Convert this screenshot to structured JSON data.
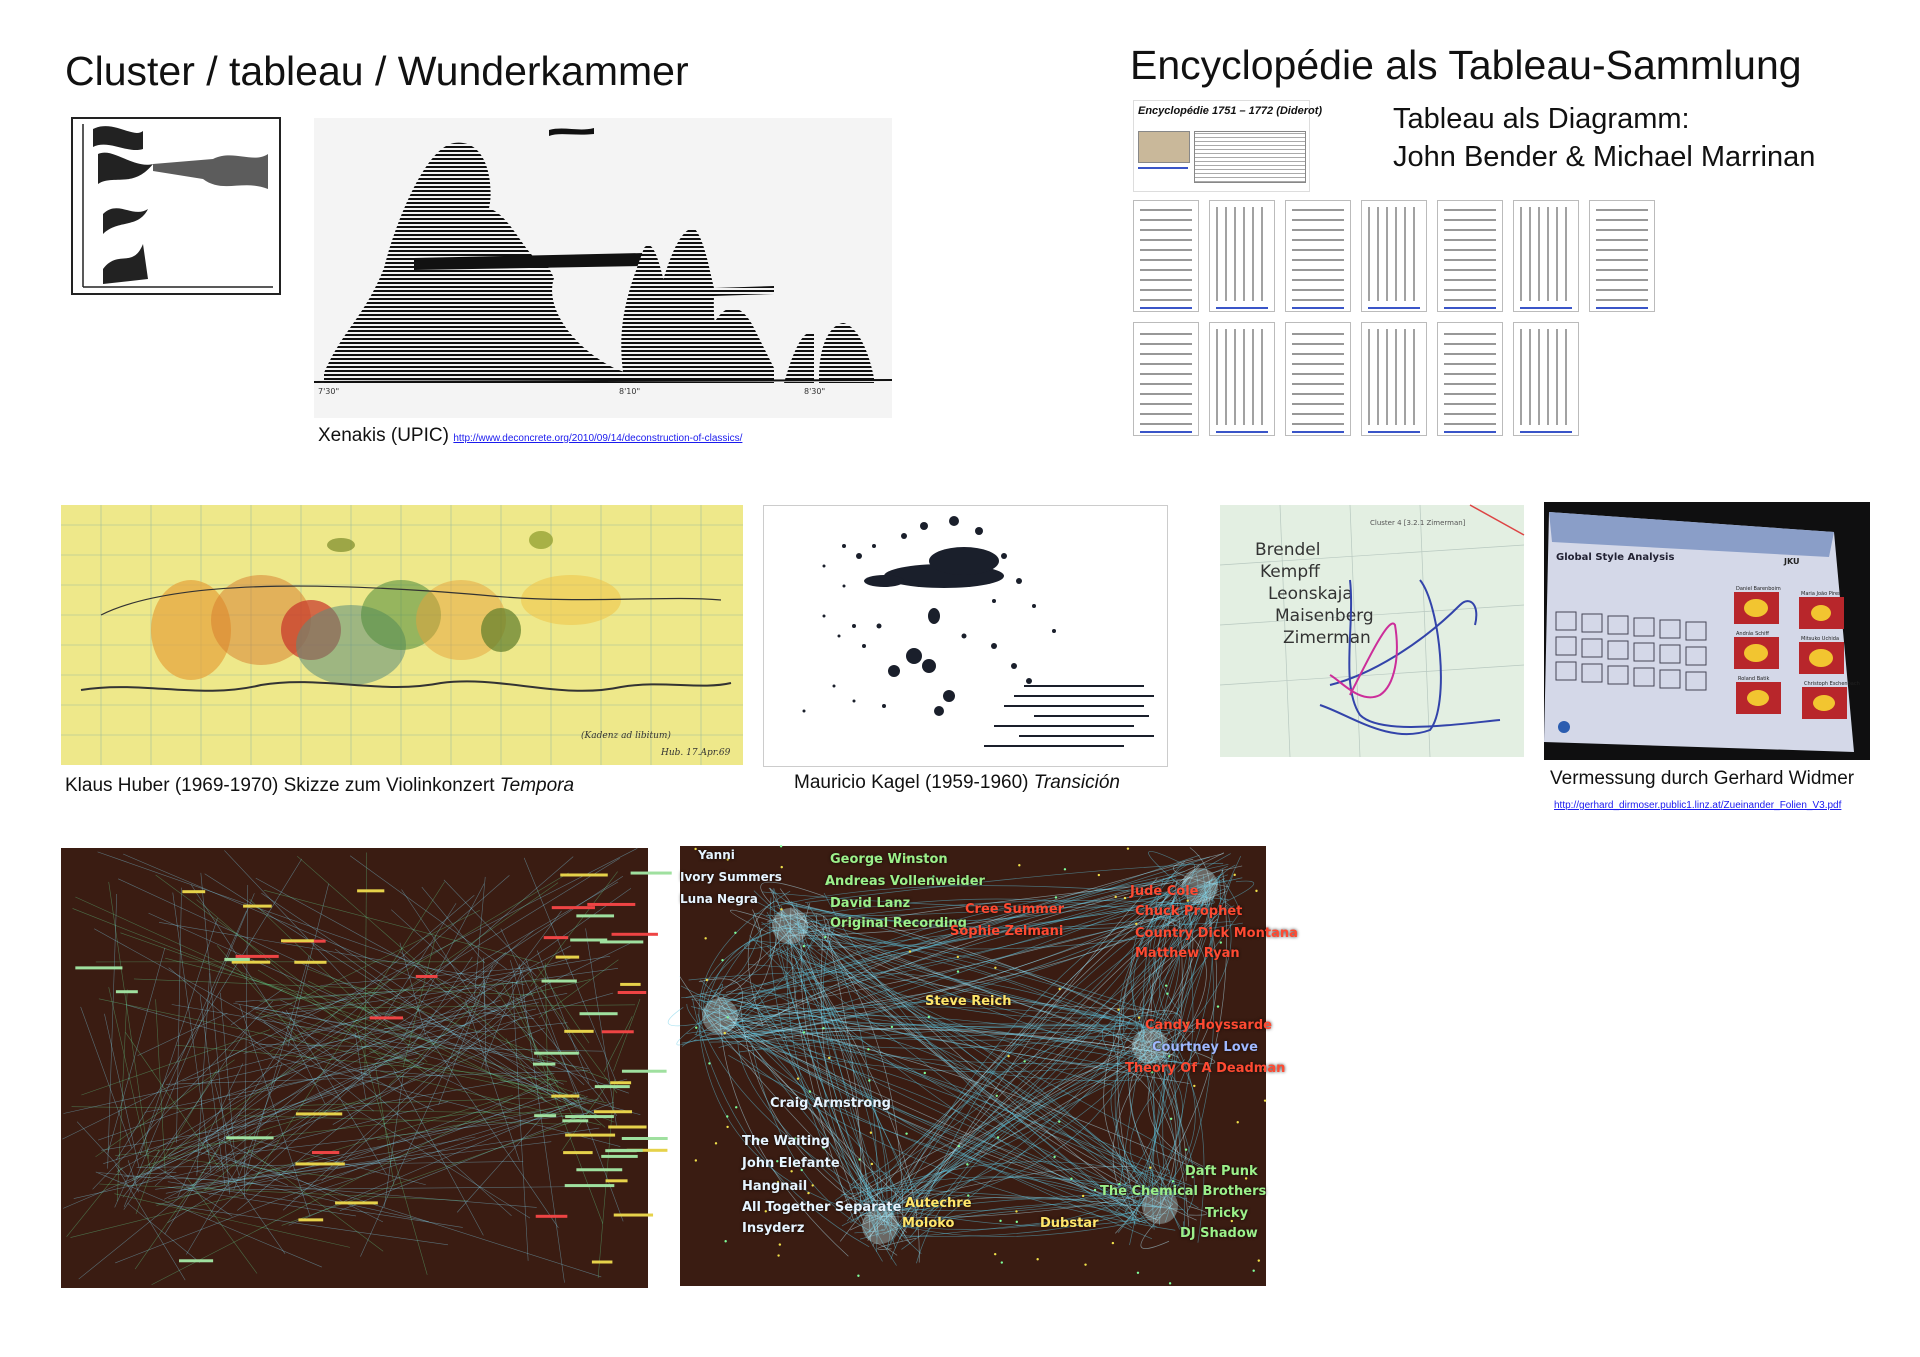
{
  "header": {
    "left_title": "Cluster / tableau / Wunderkammer",
    "right_title": "Encyclopédie als Tableau-Sammlung",
    "right_subtitle_line1": "Tableau als Diagramm:",
    "right_subtitle_line2": "John Bender & Michael Marrinan"
  },
  "xenakis": {
    "caption": "Xenakis  (UPIC)",
    "link": "http://www.deconcrete.org/2010/09/14/deconstruction-of-classics/",
    "time_marks": [
      "7'30\"",
      "8'10\"",
      "8'30\""
    ]
  },
  "encyclopedie": {
    "card_title": "Encyclopédie 1751 – 1772  (Diderot)",
    "row1_count": 7,
    "row2_count": 6
  },
  "huber": {
    "caption_prefix": "Klaus Huber (1969-1970) Skizze zum Violinkonzert ",
    "caption_work": "Tempora"
  },
  "kagel": {
    "caption_prefix": "Mauricio Kagel (1959-1960) ",
    "caption_work": "Transición"
  },
  "widmer": {
    "pianists": [
      "Brendel",
      "Kempff",
      "Leonskaja",
      "Maisenberg",
      "Zimerman"
    ],
    "plot_header": "Cluster 4 [3.2.1 Zimerman]",
    "screen_title": "Global Style Analysis",
    "screen_brand": "JKU",
    "screen_names": [
      "Daniel Barenboim",
      "Maria João Pires",
      "András Schiff",
      "Mitsuko Uchida",
      "Roland Batik",
      "Christoph Eschenbach"
    ],
    "caption": "Vermessung durch Gerhard Widmer",
    "link": "http://gerhard_dirmoser.public1.linz.at/Zueinander_Folien_V3.pdf"
  },
  "network_right": {
    "labels_white": [
      "Yanni",
      "Ivory Summers",
      "Luna Negra",
      "Craig Armstrong",
      "The Waiting",
      "John Elefante",
      "Hangnail",
      "All Together Separate",
      "Insyderz"
    ],
    "labels_green": [
      "George Winston",
      "Andreas Vollenweider",
      "David Lanz",
      "Original Recording",
      "Daft Punk",
      "The Chemical Brothers",
      "Tricky",
      "DJ Shadow"
    ],
    "labels_red": [
      "Cree Summer",
      "Sophie Zelmani",
      "Jude Cole",
      "Chuck Prophet",
      "Country Dick Montana",
      "Matthew Ryan",
      "Candy Hoyssarde",
      "Theory Of A Deadman"
    ],
    "labels_yellow": [
      "Steve Reich",
      "Autechre",
      "Moloko",
      "Dubstar"
    ],
    "labels_blue": [
      "Courtney Love"
    ]
  },
  "colors": {
    "huber_bg": "#eee88a",
    "network_bg": "#3a1c12",
    "widmer_screen_bg": "#b8262b",
    "link_blue": "#1a1aee"
  }
}
